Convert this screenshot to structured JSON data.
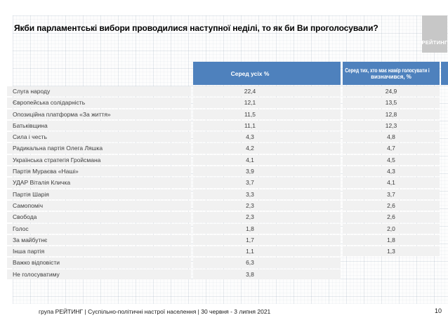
{
  "slide": {
    "title": "Якби парламентські вибори проводилися наступної неділі, то як би Ви проголосували?",
    "logo_text": "РЕЙТИНГ",
    "footer": "група РЕЙТИНГ | Суспільно-політичні настрої населення  | 30 червня - 3 липня 2021",
    "page_number": "10"
  },
  "colors": {
    "header_blue": "#4e81bd",
    "row_gray": "#f1f1f1",
    "logo_gray": "#c7c7c7"
  },
  "table": {
    "header_all": "Серед усіх %",
    "header_decided_line1": "Серед тих, хто має намір голосувати і",
    "header_decided_line2": "визначився, %"
  },
  "chart_data": {
    "type": "table",
    "title": "Якби парламентські вибори проводилися наступної неділі, то як би Ви проголосували?",
    "columns": [
      "",
      "Серед усіх %",
      "Серед тих, хто має намір голосувати і визначився, %"
    ],
    "rows": [
      [
        "Слуга народу",
        "22,4",
        "24,9"
      ],
      [
        "Європейська солідарність",
        "12,1",
        "13,5"
      ],
      [
        "Опозиційна платформа «За життя»",
        "11,5",
        "12,8"
      ],
      [
        "Батьківщина",
        "11,1",
        "12,3"
      ],
      [
        "Сила і честь",
        "4,3",
        "4,8"
      ],
      [
        "Радикальна партія Олега Ляшка",
        "4,2",
        "4,7"
      ],
      [
        "Українська стратегія Гройсмана",
        "4,1",
        "4,5"
      ],
      [
        "Партія Мураєва «Наші»",
        "3,9",
        "4,3"
      ],
      [
        "УДАР Віталія Кличка",
        "3,7",
        "4,1"
      ],
      [
        "Партія Шарія",
        "3,3",
        "3,7"
      ],
      [
        "Самопоміч",
        "2,3",
        "2,6"
      ],
      [
        "Свобода",
        "2,3",
        "2,6"
      ],
      [
        "Голос",
        "1,8",
        "2,0"
      ],
      [
        "За майбутнє",
        "1,7",
        "1,8"
      ],
      [
        "Інша партія",
        "1,1",
        "1,3"
      ],
      [
        "Важко відповісти",
        "6,3",
        ""
      ],
      [
        "Не голосуватиму",
        "3,8",
        ""
      ]
    ]
  }
}
